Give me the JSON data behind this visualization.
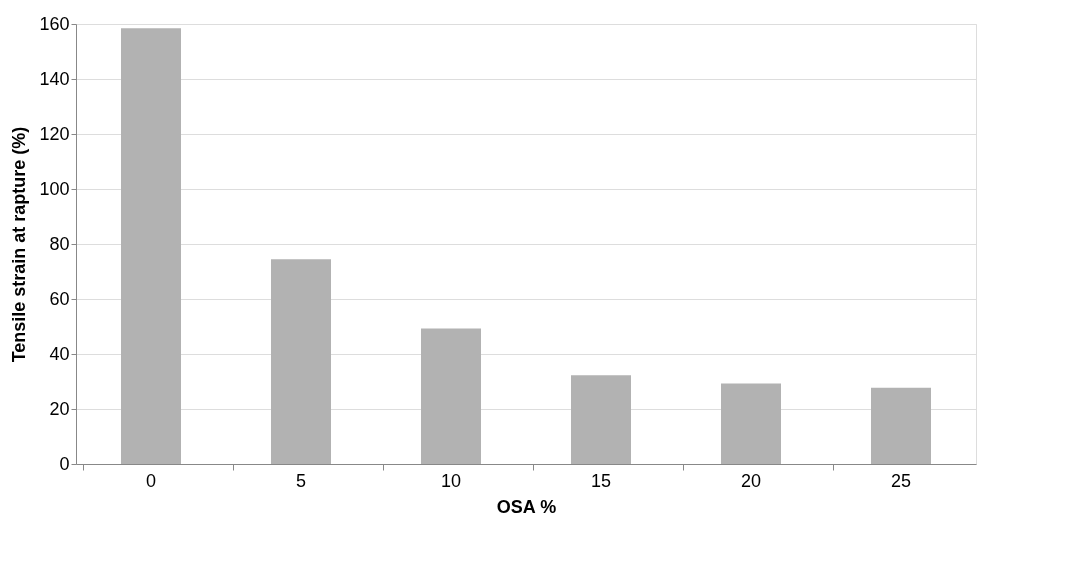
{
  "chart_data": {
    "type": "bar",
    "xlabel": "OSA %",
    "ylabel": "Tensile strain at rapture (%)",
    "categories": [
      "0",
      "5",
      "10",
      "15",
      "20",
      "25"
    ],
    "values": [
      158.5,
      74.5,
      49.3,
      32.3,
      29.3,
      27.7
    ],
    "color": "#b2b2b2",
    "ylim": [
      0,
      160
    ],
    "yticks": [
      0,
      20,
      40,
      60,
      80,
      100,
      120,
      140,
      160
    ],
    "grid": "y"
  }
}
